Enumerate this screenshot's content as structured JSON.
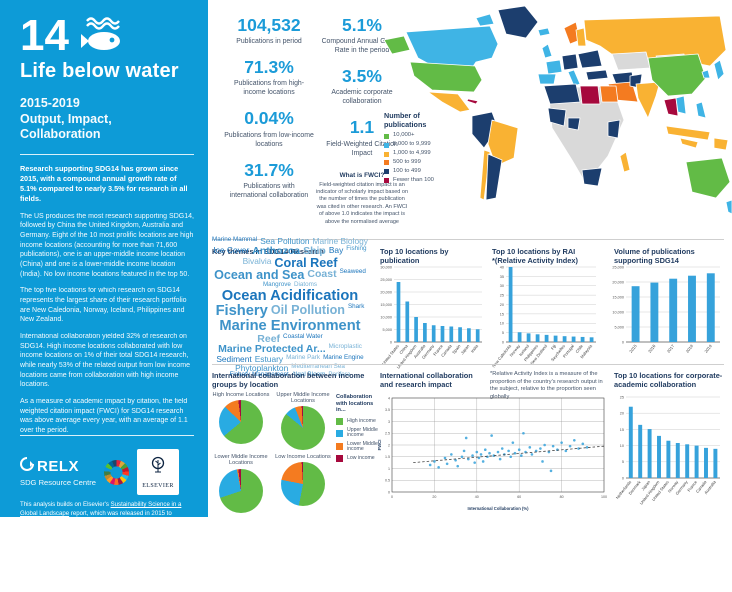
{
  "palette": {
    "accent": "#36A2DB",
    "navy": "#1F3A5F",
    "caption": "#44546A",
    "sidebar_blue": "#0D9BD7",
    "cloud_colors": [
      "#1B75BC",
      "#3E93C9",
      "#78B2D6"
    ]
  },
  "sidebar": {
    "goal_number": "14",
    "title": "Life below water",
    "subtitle_line1": "2015-2019",
    "subtitle_line2": "Output, Impact, Collaboration",
    "lead": "Research supporting SDG14 has grown since 2015, with a compound annual growth rate of 5.1% compared to nearly 3.5% for research in all fields.",
    "paragraphs": [
      "The US produces the most research supporting SDG14, followed by China the United Kingdom, Australia and Germany. Eight of the 10 most prolific locations are high income locations (accounting for more than 71,600 publications), one is an upper-middle income location (China) and one is a lower-middle income location (India). No low income locations featured in the top 50.",
      "The top five locations for which research on SDG14 represents the largest share of their research portfolio are New Caledonia, Norway, Iceland, Philippines and New Zealand.",
      "International collaboration yielded 32% of research on SDG14. High income locations collaborated with low income locations on 1% of their total SDG14 research, while nearly 53% of the related output from low income locations came from collaboration with high income locations.",
      "As a measure of academic impact by citation, the field weighted citation impact (FWCI) for SDG14 research was above average every year, with an average of 1.1 over the period."
    ],
    "relx_name": "RELX",
    "relx_sub": "SDG Resource Centre",
    "elsevier_name": "ELSEVIER",
    "footer_segments": [
      {
        "text": "This analysis builds on Elsevier's ",
        "link": false
      },
      {
        "text": "Sustainability Science in a Global Landscape",
        "link": true
      },
      {
        "text": " report, which was released in 2015 to coincide with the launch of the SDGs. See a ",
        "link": false
      },
      {
        "text": "2017 update",
        "link": true
      },
      {
        "text": " on key findings on the ",
        "link": false
      },
      {
        "text": "RELX SDG Resource Centre",
        "link": true
      },
      {
        "text": ". Help us to provide insight into SDG research.",
        "link": false
      }
    ],
    "footer_links": [
      "Click here to review the research",
      "See the methodology and definitions"
    ],
    "legal": "RELX and the RE symbol are trademarks of RELX Group plc, used under licence. Elsevier is a registered trademark of Elsevier B.V. © 2020 RELX Group. Scopus®"
  },
  "stats": {
    "col1": [
      {
        "value": "104,532",
        "label": "Publications in period"
      },
      {
        "value": "71.3%",
        "label": "Publications from high-income locations"
      },
      {
        "value": "0.04%",
        "label": "Publications from low-income locations"
      },
      {
        "value": "31.7%",
        "label": "Publications with international collaboration"
      }
    ],
    "col2": [
      {
        "value": "5.1%",
        "label": "Compound Annual Growth Rate in the period"
      },
      {
        "value": "3.5%",
        "label": "Academic corporate collaboration"
      },
      {
        "value": "1.1",
        "label": "Field-Weighted Citation Impact"
      }
    ],
    "fwci_note": {
      "title": "What is FWCI?",
      "body": "Field-weighted citation impact is an indicator of scholarly impact based on the number of times the publication was cited in other research. An FWCI of above 1.0 indicates the impact is above the normalised average"
    }
  },
  "map": {
    "legend_title": "Number of publications",
    "legend": [
      {
        "label": "10,000+",
        "color": "#62BB46"
      },
      {
        "label": "5,000 to 9,999",
        "color": "#3FB4E5"
      },
      {
        "label": "1,000 to 4,999",
        "color": "#F9B233"
      },
      {
        "label": "500 to 999",
        "color": "#F47B20"
      },
      {
        "label": "100 to 499",
        "color": "#1C3E6E"
      },
      {
        "label": "Fewer than 100",
        "color": "#A6093D"
      }
    ]
  },
  "key_themes": {
    "title": "Key themes in SDG14 Research",
    "words": [
      {
        "text": "Marine Mammal",
        "size": 1
      },
      {
        "text": "Sea Pollution",
        "size": 2
      },
      {
        "text": "Marine Biology",
        "size": 2
      },
      {
        "text": "Ice Cover",
        "size": 2
      },
      {
        "text": "Anthozoa",
        "size": 3
      },
      {
        "text": "Ship",
        "size": 3
      },
      {
        "text": "Bay",
        "size": 2
      },
      {
        "text": "Fishing",
        "size": 1
      },
      {
        "text": "Bivalvia",
        "size": 2
      },
      {
        "text": "Coral Reef",
        "size": 4
      },
      {
        "text": "Ocean and Sea",
        "size": 4
      },
      {
        "text": "Coast",
        "size": 3
      },
      {
        "text": "Seaweed",
        "size": 1
      },
      {
        "text": "Mangrove",
        "size": 1
      },
      {
        "text": "Diatoms",
        "size": 1
      },
      {
        "text": "Ocean Acidification",
        "size": 5
      },
      {
        "text": "Fishery",
        "size": 5
      },
      {
        "text": "Oil Pollution",
        "size": 4
      },
      {
        "text": "Shark",
        "size": 1
      },
      {
        "text": "Marine Environment",
        "size": 5
      },
      {
        "text": "Reef",
        "size": 3
      },
      {
        "text": "Coastal Water",
        "size": 1
      },
      {
        "text": "Marine Protected Ar...",
        "size": 3
      },
      {
        "text": "Microplastic",
        "size": 1
      },
      {
        "text": "Sediment",
        "size": 2
      },
      {
        "text": "Estuary",
        "size": 2
      },
      {
        "text": "Marine Park",
        "size": 1
      },
      {
        "text": "Marine Engine",
        "size": 1
      },
      {
        "text": "Phytoplankton",
        "size": 2
      },
      {
        "text": "Mediterranean Sea",
        "size": 1
      },
      {
        "text": "Fishery Management",
        "size": 1
      },
      {
        "text": "Algal Bloom",
        "size": 1
      },
      {
        "text": "Porifera",
        "size": 1
      }
    ]
  },
  "sections": {
    "top10_pub_title": "Top 10 locations by publication",
    "rai_title": "Top 10 locations by RAI",
    "rai_subtitle": "*(Relative Activity Index)",
    "volume_title": "Volume of publications supporting SDG14",
    "income_title": "International collaboration between income groups by location",
    "scatter_title": "International collaboration and research impact",
    "rai_footnote": "*Relative Activity Index is a measure of the proportion of the country's research output in the subject, relative to the proportion seen globally",
    "corporate_title": "Top 10 locations for corporate-academic collaboration"
  },
  "chart_data": [
    {
      "id": "top10_publications",
      "type": "bar",
      "title": "Top 10 locations by publication",
      "categories": [
        "United States",
        "China",
        "United Kingdom",
        "Australia",
        "Germany",
        "France",
        "Canada",
        "Spain",
        "Japan",
        "India"
      ],
      "values": [
        24000,
        16200,
        10000,
        7600,
        6700,
        6400,
        6200,
        5900,
        5500,
        5100
      ],
      "ylim": [
        0,
        30000
      ],
      "ystep": 5000
    },
    {
      "id": "top10_rai",
      "type": "bar",
      "title": "Top 10 locations by RAI *(Relative Activity Index)",
      "categories": [
        "New Caledonia",
        "Norway",
        "Iceland",
        "Philippines",
        "New Zealand",
        "Fiji",
        "Seychelles",
        "Portugal",
        "Chile",
        "Malaysia"
      ],
      "values": [
        40,
        5.2,
        4.6,
        4.1,
        3.8,
        3.4,
        3.1,
        2.9,
        2.7,
        2.5
      ],
      "ylim": [
        0,
        40
      ],
      "ystep": 5
    },
    {
      "id": "volume",
      "type": "bar",
      "title": "Volume of publications supporting SDG14",
      "categories": [
        "2015",
        "2016",
        "2017",
        "2018",
        "2019"
      ],
      "values": [
        18600,
        19800,
        21100,
        22100,
        22900
      ],
      "ylim": [
        0,
        25000
      ],
      "ystep": 5000
    },
    {
      "id": "income_collab",
      "type": "pie",
      "title": "International collaboration between income groups by location",
      "legend_title": "Collaboration with locations in...",
      "slice_labels": [
        "High income",
        "Upper Middle income",
        "Lower Middle income",
        "Low income"
      ],
      "colors": [
        "#62BB46",
        "#29ABE2",
        "#F47B20",
        "#A6093D"
      ],
      "pies": [
        {
          "label": "High Income Locations",
          "values": [
            64,
            23,
            11,
            2
          ]
        },
        {
          "label": "Upper Middle Income Locations",
          "values": [
            86,
            8,
            5,
            1
          ]
        },
        {
          "label": "Lower Middle Income Locations",
          "values": [
            70,
            27,
            1,
            2
          ]
        },
        {
          "label": "Low Income Locations",
          "values": [
            53,
            25,
            21,
            1
          ]
        }
      ]
    },
    {
      "id": "collab_impact",
      "type": "scatter",
      "title": "International collaboration and research impact",
      "xlabel": "International Collaboration (%)",
      "ylabel": "FWCI",
      "xlim": [
        0,
        100
      ],
      "xstep": 20,
      "ylim": [
        0,
        4
      ],
      "ystep": 0.5,
      "points": [
        [
          18,
          1.15
        ],
        [
          20,
          1.3
        ],
        [
          22,
          1.05
        ],
        [
          25,
          1.45
        ],
        [
          26,
          1.2
        ],
        [
          28,
          1.6
        ],
        [
          30,
          1.35
        ],
        [
          31,
          1.1
        ],
        [
          33,
          1.5
        ],
        [
          34,
          1.75
        ],
        [
          35,
          2.3
        ],
        [
          36,
          1.4
        ],
        [
          38,
          1.55
        ],
        [
          39,
          1.25
        ],
        [
          40,
          1.7
        ],
        [
          41,
          1.45
        ],
        [
          42,
          1.6
        ],
        [
          43,
          1.3
        ],
        [
          44,
          1.8
        ],
        [
          45,
          1.5
        ],
        [
          46,
          1.65
        ],
        [
          47,
          2.4
        ],
        [
          48,
          1.55
        ],
        [
          50,
          1.7
        ],
        [
          51,
          1.4
        ],
        [
          52,
          1.85
        ],
        [
          53,
          1.6
        ],
        [
          55,
          1.75
        ],
        [
          56,
          1.5
        ],
        [
          57,
          2.1
        ],
        [
          58,
          1.65
        ],
        [
          60,
          1.8
        ],
        [
          61,
          1.55
        ],
        [
          62,
          2.5
        ],
        [
          63,
          1.7
        ],
        [
          65,
          1.9
        ],
        [
          66,
          1.6
        ],
        [
          68,
          1.75
        ],
        [
          70,
          1.85
        ],
        [
          71,
          1.3
        ],
        [
          72,
          2.0
        ],
        [
          74,
          1.7
        ],
        [
          75,
          0.9
        ],
        [
          76,
          1.95
        ],
        [
          78,
          1.8
        ],
        [
          80,
          2.1
        ],
        [
          82,
          1.75
        ],
        [
          84,
          1.95
        ],
        [
          86,
          2.2
        ],
        [
          88,
          1.85
        ],
        [
          90,
          2.05
        ],
        [
          92,
          1.9
        ]
      ],
      "trend": [
        [
          10,
          1.25
        ],
        [
          100,
          1.95
        ]
      ]
    },
    {
      "id": "top10_corporate",
      "type": "bar",
      "title": "Top 10 locations for corporate-academic collaboration",
      "categories": [
        "Netherlands",
        "Denmark",
        "Japan",
        "United Kingdom",
        "United States",
        "Norway",
        "Germany",
        "France",
        "Canada",
        "Australia"
      ],
      "values": [
        22,
        16.4,
        15.1,
        13,
        11.5,
        10.8,
        10.4,
        10,
        9.3,
        9
      ],
      "ylim": [
        0,
        25
      ],
      "ystep": 5
    }
  ]
}
